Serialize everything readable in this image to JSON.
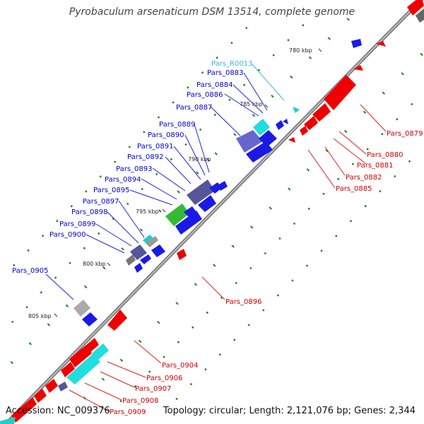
{
  "title": "Pyrobaculum arsenaticum DSM 13514, complete genome",
  "footer": {
    "accession": "Accession: NC_009376",
    "summary": "Topology: circular; Length: 2,121,076 bp; Genes: 2,344"
  },
  "colors": {
    "backbone": "#8a8a8a",
    "forward_gene": "#0000ee",
    "reverse_gene": "#ee0000",
    "rna_gene": "#22cccc",
    "label_forward": "#0000cc",
    "label_reverse": "#cc0000",
    "label_rna": "#33bbdd"
  },
  "ticks": [
    "780 kbp",
    "785 kbp",
    "790 kbp",
    "795 kbp",
    "800 kbp",
    "805 kbp"
  ],
  "labels_forward": [
    "Pars_R0013",
    "Pars_0883",
    "Pars_0884",
    "Pars_0886",
    "Pars_0887",
    "Pars_0889",
    "Pars_0890",
    "Pars_0891",
    "Pars_0892",
    "Pars_0893",
    "Pars_0894",
    "Pars_0895",
    "Pars_0897",
    "Pars_0898",
    "Pars_0899",
    "Pars_0900",
    "Pars_0905"
  ],
  "labels_reverse": [
    "Pars_0879",
    "Pars_0880",
    "Pars_0881",
    "Pars_0882",
    "Pars_0885",
    "Pars_0896",
    "Pars_0904",
    "Pars_0906",
    "Pars_0907",
    "Pars_0908",
    "Pars_0909"
  ]
}
